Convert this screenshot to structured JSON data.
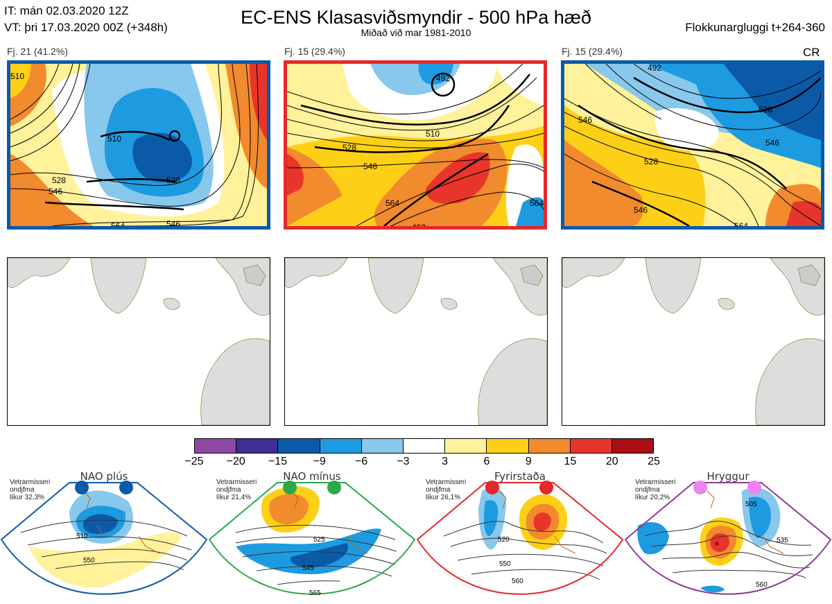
{
  "header": {
    "it": "IT: mán 02.03.2020 12Z",
    "vt": "VT: þri 17.03.2020 00Z  (+348h)",
    "title": "EC-ENS Klasasviðsmyndir - 500 hPa hæð",
    "subtitle": "Miðað við mar 1981-2010",
    "window": "Flokkunargluggi t+264-360"
  },
  "clusters": [
    {
      "label": "Fj. 21 (41.2%)",
      "border_color": "#0b5aa8",
      "regime": "NAO plús",
      "contours": [
        "510",
        "528",
        "546",
        "564",
        "510",
        "528",
        "546"
      ]
    },
    {
      "label": "Fj. 15 (29.4%)",
      "border_color": "#e4282b",
      "regime": "Fyrirstaða",
      "contours": [
        "510",
        "528",
        "546",
        "564",
        "492",
        "564",
        "492"
      ]
    },
    {
      "label": "Fj. 15 (29.4%)",
      "border_color": "#0b5aa8",
      "regime": "NAO plús",
      "contours": [
        "492",
        "528",
        "546",
        "528",
        "546",
        "546",
        "564"
      ],
      "marker": "CR"
    }
  ],
  "colorbar": {
    "ticks": [
      "−25",
      "−20",
      "−15",
      "−9",
      "−6",
      "−3",
      "3",
      "6",
      "9",
      "15",
      "20",
      "25"
    ],
    "colors": [
      "#8e4aa3",
      "#3f2f94",
      "#0b5aa8",
      "#1e9be0",
      "#88c8ec",
      "#ffffff",
      "#fff29a",
      "#fdd017",
      "#f28a2e",
      "#e8352b",
      "#aa0f15"
    ]
  },
  "regimes": [
    {
      "title": "NAO plús",
      "info": [
        "Vetrarmisseri",
        "ondjfma",
        "líkur 32,3%"
      ],
      "border": "#0b5aa8",
      "dot": "#0b5aa8",
      "contours": [
        "510",
        "550"
      ]
    },
    {
      "title": "NAO mínus",
      "info": [
        "Vetrarmisseri",
        "ondjfma",
        "líkur 21,4%"
      ],
      "border": "#2aa84a",
      "dot": "#2aa84a",
      "contours": [
        "525",
        "545",
        "565"
      ]
    },
    {
      "title": "Fyrirstaða",
      "info": [
        "Vetrarmisseri",
        "ondjfma",
        "líkur 26,1%"
      ],
      "border": "#e4282b",
      "dot": "#e4282b",
      "contours": [
        "520",
        "550",
        "560"
      ]
    },
    {
      "title": "Hryggur",
      "info": [
        "Vetrarmisseri",
        "ondjfma",
        "líkur 20,2%"
      ],
      "border": "#8e3a96",
      "dot": "#ee82ee",
      "contours": [
        "505",
        "535",
        "560"
      ]
    }
  ]
}
